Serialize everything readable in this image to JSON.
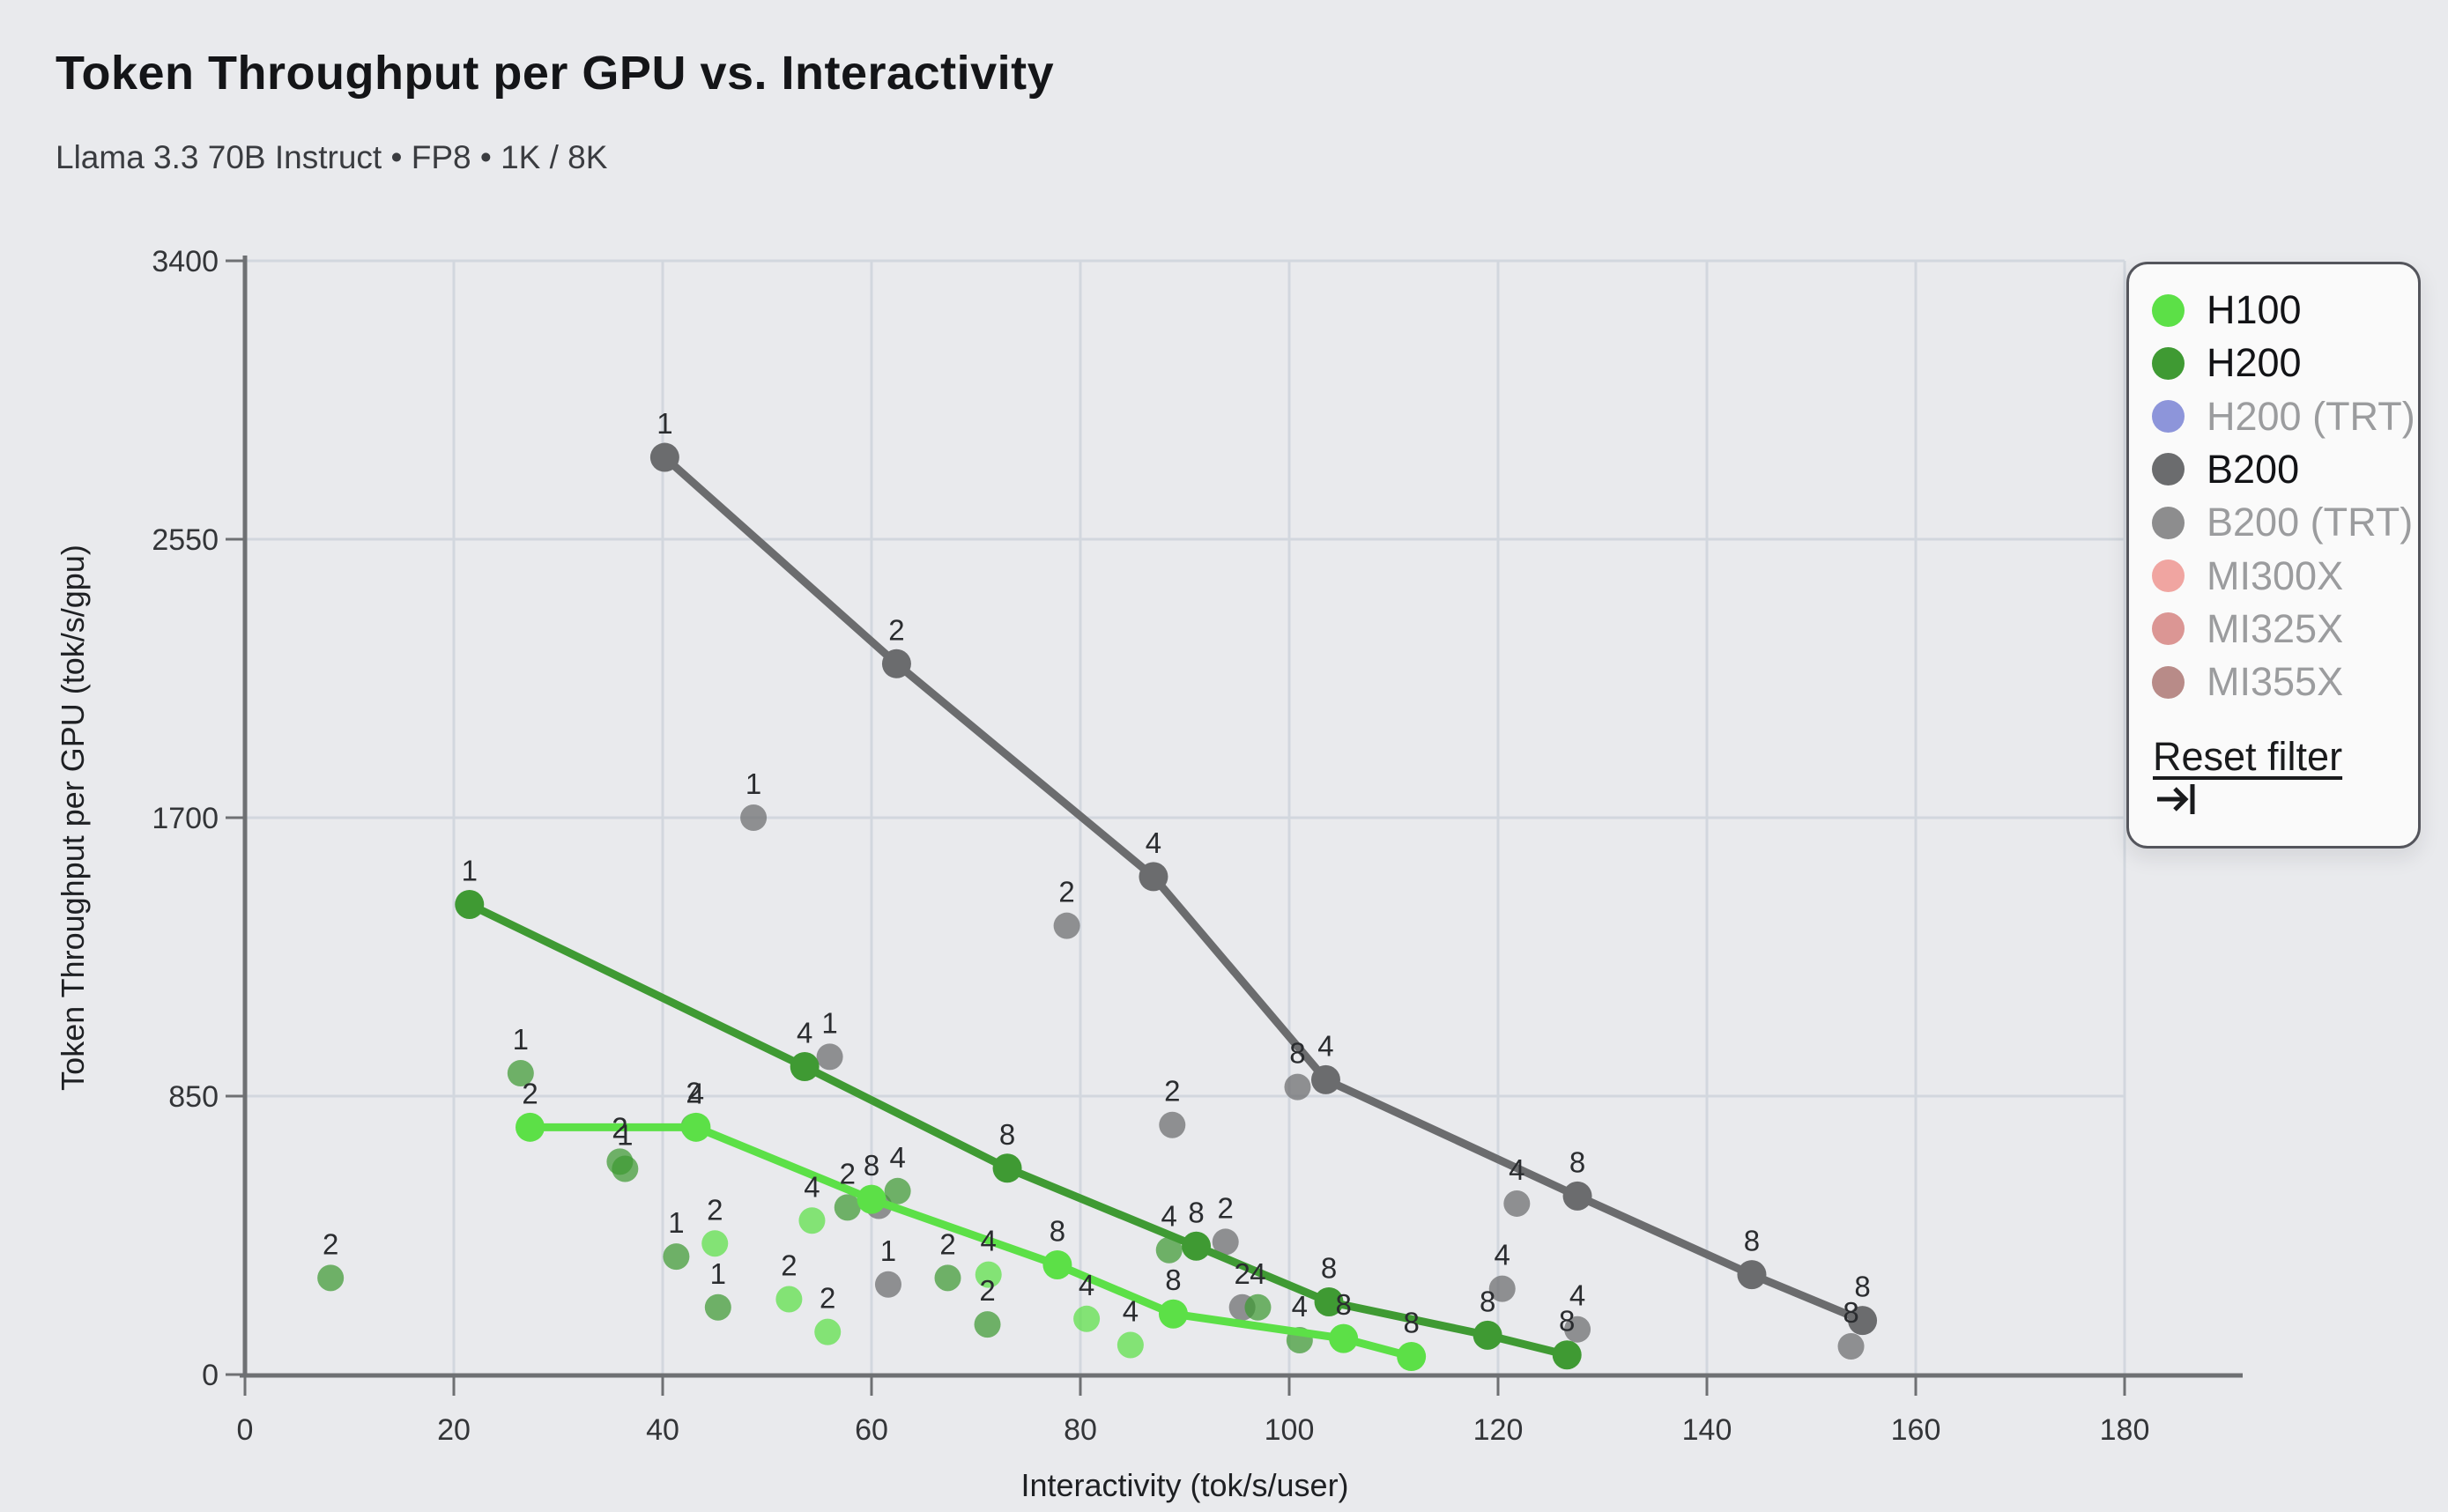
{
  "header": {
    "title": "Token Throughput per GPU vs. Interactivity",
    "subtitle": "Llama 3.3 70B Instruct • FP8 • 1K / 8K"
  },
  "legend": {
    "reset_label": "Reset filter",
    "items": [
      {
        "label": "H100",
        "color": "#5ce047",
        "active": true
      },
      {
        "label": "H200",
        "color": "#3f9a33",
        "active": true
      },
      {
        "label": "H200 (TRT)",
        "color": "#8d95da",
        "active": false
      },
      {
        "label": "B200",
        "color": "#6b6c6e",
        "active": true
      },
      {
        "label": "B200 (TRT)",
        "color": "#8d8d8e",
        "active": false
      },
      {
        "label": "MI300X",
        "color": "#f0a5a1",
        "active": false
      },
      {
        "label": "MI325X",
        "color": "#db9694",
        "active": false
      },
      {
        "label": "MI355X",
        "color": "#b88b88",
        "active": false
      }
    ]
  },
  "chart_data": {
    "type": "scatter",
    "title": "Token Throughput per GPU vs. Interactivity",
    "xlabel": "Interactivity (tok/s/user)",
    "ylabel": "Token Throughput per GPU (tok/s/gpu)",
    "xlim": [
      0,
      180
    ],
    "ylim": [
      0,
      3400
    ],
    "x_ticks": [
      0,
      20,
      40,
      60,
      80,
      100,
      120,
      140,
      160,
      180
    ],
    "y_ticks": [
      0,
      850,
      1700,
      2550,
      3400
    ],
    "grid": true,
    "legend_position": "top-right",
    "point_labels_are": "gpu count shown above each point",
    "series": [
      {
        "name": "H100",
        "color": "#5ce047",
        "active": true,
        "line_points": [
          {
            "x": 27.3,
            "y": 755,
            "label": "2"
          },
          {
            "x": 43.2,
            "y": 755,
            "label": "4"
          },
          {
            "x": 60.0,
            "y": 535,
            "label": "8"
          },
          {
            "x": 77.8,
            "y": 335,
            "label": "8"
          },
          {
            "x": 88.9,
            "y": 185,
            "label": "8"
          },
          {
            "x": 105.2,
            "y": 110,
            "label": "8"
          },
          {
            "x": 111.7,
            "y": 55,
            "label": "8"
          }
        ],
        "scatter_points": [
          {
            "x": 45.0,
            "y": 400,
            "label": "2"
          },
          {
            "x": 52.1,
            "y": 230,
            "label": "2"
          },
          {
            "x": 55.8,
            "y": 130,
            "label": "2"
          },
          {
            "x": 54.3,
            "y": 470,
            "label": "4"
          },
          {
            "x": 71.2,
            "y": 305,
            "label": "4"
          },
          {
            "x": 80.6,
            "y": 170,
            "label": "4"
          },
          {
            "x": 84.8,
            "y": 90,
            "label": "4"
          }
        ]
      },
      {
        "name": "H200",
        "color": "#3f9a33",
        "active": true,
        "line_points": [
          {
            "x": 21.5,
            "y": 1435,
            "label": "1"
          },
          {
            "x": 53.6,
            "y": 940,
            "label": "4"
          },
          {
            "x": 73.0,
            "y": 630,
            "label": "8"
          },
          {
            "x": 91.1,
            "y": 392,
            "label": "8"
          },
          {
            "x": 103.8,
            "y": 222,
            "label": "8"
          },
          {
            "x": 119.0,
            "y": 120,
            "label": "8"
          },
          {
            "x": 126.6,
            "y": 60,
            "label": "8"
          }
        ],
        "scatter_points": [
          {
            "x": 8.2,
            "y": 295,
            "label": "2"
          },
          {
            "x": 26.4,
            "y": 920,
            "label": "1"
          },
          {
            "x": 35.9,
            "y": 650,
            "label": "2"
          },
          {
            "x": 36.4,
            "y": 628,
            "label": "1"
          },
          {
            "x": 43.0,
            "y": 757,
            "label": "2"
          },
          {
            "x": 41.3,
            "y": 360,
            "label": "1"
          },
          {
            "x": 45.3,
            "y": 205,
            "label": "1"
          },
          {
            "x": 57.7,
            "y": 510,
            "label": "2"
          },
          {
            "x": 62.5,
            "y": 560,
            "label": "4"
          },
          {
            "x": 67.3,
            "y": 295,
            "label": "2"
          },
          {
            "x": 71.1,
            "y": 153,
            "label": "2"
          },
          {
            "x": 88.5,
            "y": 380,
            "label": "4"
          },
          {
            "x": 97.0,
            "y": 205,
            "label": "4"
          },
          {
            "x": 101.0,
            "y": 105,
            "label": "4"
          }
        ]
      },
      {
        "name": "H200 (TRT)",
        "color": "#8d95da",
        "active": false,
        "line_points": [],
        "scatter_points": []
      },
      {
        "name": "B200",
        "color": "#6b6c6e",
        "active": true,
        "line_points": [
          {
            "x": 40.2,
            "y": 2800,
            "label": "1"
          },
          {
            "x": 62.4,
            "y": 2170,
            "label": "2"
          },
          {
            "x": 87.0,
            "y": 1520,
            "label": "4"
          },
          {
            "x": 103.5,
            "y": 900,
            "label": "4"
          },
          {
            "x": 127.6,
            "y": 545,
            "label": "8"
          },
          {
            "x": 144.3,
            "y": 305,
            "label": "8"
          },
          {
            "x": 154.9,
            "y": 165,
            "label": "8"
          }
        ],
        "scatter_points": [
          {
            "x": 48.7,
            "y": 1700,
            "label": "1"
          },
          {
            "x": 56.0,
            "y": 970,
            "label": "1"
          },
          {
            "x": 60.7,
            "y": 515,
            "label": ""
          },
          {
            "x": 61.6,
            "y": 275,
            "label": "1"
          },
          {
            "x": 78.7,
            "y": 1370,
            "label": "2"
          },
          {
            "x": 88.8,
            "y": 762,
            "label": "2"
          },
          {
            "x": 93.9,
            "y": 405,
            "label": "2"
          },
          {
            "x": 95.5,
            "y": 205,
            "label": "2"
          },
          {
            "x": 100.8,
            "y": 878,
            "label": "8"
          },
          {
            "x": 120.4,
            "y": 262,
            "label": "4"
          },
          {
            "x": 121.8,
            "y": 522,
            "label": "4"
          },
          {
            "x": 127.6,
            "y": 138,
            "label": "4"
          },
          {
            "x": 153.8,
            "y": 86,
            "label": "8"
          }
        ]
      },
      {
        "name": "B200 (TRT)",
        "color": "#8d8d8e",
        "active": false,
        "line_points": [],
        "scatter_points": []
      },
      {
        "name": "MI300X",
        "color": "#f0a5a1",
        "active": false,
        "line_points": [],
        "scatter_points": []
      },
      {
        "name": "MI325X",
        "color": "#db9694",
        "active": false,
        "line_points": [],
        "scatter_points": []
      },
      {
        "name": "MI355X",
        "color": "#b88b88",
        "active": false,
        "line_points": [],
        "scatter_points": []
      }
    ]
  }
}
